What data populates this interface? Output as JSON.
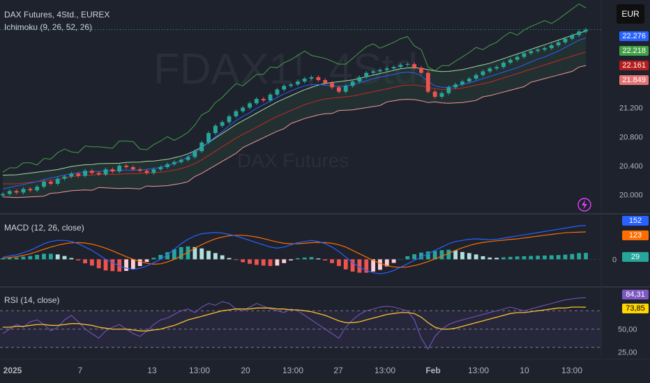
{
  "header": {
    "symbol_title": "DAX Futures, 4Std., EUREX",
    "indicator1": "Ichimoku (9, 26, 52, 26)",
    "currency": "EUR",
    "watermark_symbol": "FDAX1!, 4Std.",
    "watermark_name": "DAX Futures"
  },
  "price_axis": {
    "ticks": [
      "21.200",
      "20.800",
      "20.400",
      "20.000"
    ],
    "tick_values": [
      21200,
      20800,
      20400,
      20000
    ],
    "badges": [
      {
        "text": "22.276",
        "color": "#2962ff"
      },
      {
        "text": "22.218",
        "color": "#43a047"
      },
      {
        "text": "22.161",
        "color": "#b71c1c"
      },
      {
        "text": "21.849",
        "color": "#e57373"
      }
    ]
  },
  "macd": {
    "label": "MACD (12, 26, close)",
    "badges": [
      {
        "text": "152",
        "color": "#2962ff"
      },
      {
        "text": "123",
        "color": "#ff6d00"
      },
      {
        "text": "29",
        "color": "#26a69a"
      }
    ],
    "zero_tick": "0"
  },
  "rsi": {
    "label": "RSI (14, close)",
    "badges": [
      {
        "text": "84,31",
        "color": "#7e57c2"
      },
      {
        "text": "73,85",
        "color": "#ffd600"
      }
    ],
    "ticks": [
      "50,00",
      "25,00"
    ]
  },
  "time_axis": {
    "labels": [
      "2025",
      "7",
      "13",
      "13:00",
      "20",
      "13:00",
      "27",
      "13:00",
      "Feb",
      "13:00",
      "10",
      "13:00"
    ]
  },
  "chart_data": {
    "type": "line",
    "title": "DAX Futures, 4Std., EUREX",
    "currency": "EUR",
    "ylim": [
      19900,
      22300
    ],
    "price_close": [
      20010,
      20050,
      20030,
      20080,
      20060,
      20110,
      20180,
      20150,
      20220,
      20250,
      20290,
      20260,
      20330,
      20300,
      20280,
      20350,
      20320,
      20400,
      20380,
      20350,
      20330,
      20300,
      20350,
      20380,
      20420,
      20450,
      20480,
      20520,
      20600,
      20720,
      20850,
      20950,
      21000,
      21080,
      21150,
      21200,
      21260,
      21320,
      21300,
      21380,
      21450,
      21500,
      21520,
      21560,
      21600,
      21620,
      21580,
      21540,
      21480,
      21420,
      21500,
      21560,
      21620,
      21680,
      21700,
      21720,
      21740,
      21760,
      21790,
      21800,
      21750,
      21680,
      21420,
      21350,
      21400,
      21480,
      21520,
      21560,
      21600,
      21650,
      21700,
      21740,
      21760,
      21820,
      21860,
      21900,
      21950,
      21980,
      22000,
      22020,
      22060,
      22100,
      22150,
      22200,
      22250,
      22276
    ],
    "tenkan": [
      20080,
      20100,
      20120,
      20140,
      20160,
      20180,
      20210,
      20230,
      20250,
      20270,
      20290,
      20300,
      20310,
      20320,
      20320,
      20330,
      20330,
      20340,
      20340,
      20340,
      20340,
      20350,
      20360,
      20380,
      20400,
      20430,
      20470,
      20520,
      20580,
      20650,
      20720,
      20800,
      20870,
      20950,
      21020,
      21080,
      21130,
      21190,
      21240,
      21290,
      21340,
      21390,
      21430,
      21470,
      21500,
      21520,
      21520,
      21510,
      21500,
      21490,
      21500,
      21520,
      21540,
      21570,
      21600,
      21620,
      21640,
      21660,
      21680,
      21690,
      21680,
      21640,
      21560,
      21500,
      21480,
      21480,
      21500,
      21520,
      21540,
      21570,
      21600,
      21630,
      21660,
      21690,
      21720,
      21750,
      21790,
      21830,
      21870,
      21900,
      21940,
      21980,
      22030,
      22080,
      22130,
      22161
    ],
    "kijun": [
      20150,
      20150,
      20150,
      20160,
      20170,
      20180,
      20190,
      20200,
      20210,
      20230,
      20250,
      20260,
      20270,
      20270,
      20280,
      20280,
      20280,
      20280,
      20290,
      20290,
      20290,
      20300,
      20300,
      20310,
      20320,
      20340,
      20360,
      20390,
      20430,
      20480,
      20540,
      20600,
      20660,
      20720,
      20780,
      20830,
      20880,
      20930,
      20980,
      21030,
      21080,
      21120,
      21160,
      21200,
      21240,
      21270,
      21300,
      21320,
      21330,
      21340,
      21350,
      21360,
      21380,
      21400,
      21420,
      21440,
      21460,
      21480,
      21500,
      21510,
      21510,
      21500,
      21480,
      21460,
      21450,
      21450,
      21460,
      21470,
      21490,
      21510,
      21530,
      21550,
      21580,
      21610,
      21640,
      21670,
      21700,
      21730,
      21760,
      21790,
      21820,
      21850,
      21880,
      21910,
      21940,
      21966
    ],
    "macd_line": [
      10,
      15,
      20,
      30,
      40,
      55,
      70,
      80,
      85,
      85,
      80,
      70,
      55,
      40,
      20,
      0,
      -15,
      -30,
      -40,
      -45,
      -40,
      -30,
      -15,
      0,
      20,
      45,
      70,
      90,
      105,
      115,
      118,
      120,
      118,
      112,
      105,
      95,
      85,
      75,
      65,
      55,
      50,
      55,
      65,
      75,
      80,
      85,
      80,
      70,
      55,
      35,
      10,
      -15,
      -35,
      -50,
      -60,
      -65,
      -60,
      -50,
      -35,
      -20,
      -5,
      10,
      25,
      40,
      55,
      70,
      80,
      85,
      90,
      92,
      90,
      88,
      90,
      95,
      100,
      105,
      110,
      115,
      120,
      125,
      130,
      135,
      140,
      145,
      150,
      152
    ],
    "signal_line": [
      5,
      8,
      12,
      18,
      25,
      35,
      45,
      55,
      63,
      70,
      74,
      75,
      73,
      68,
      60,
      50,
      38,
      25,
      12,
      0,
      -10,
      -18,
      -22,
      -20,
      -12,
      0,
      15,
      32,
      50,
      66,
      80,
      92,
      100,
      106,
      108,
      108,
      105,
      100,
      93,
      85,
      78,
      72,
      70,
      70,
      72,
      75,
      76,
      75,
      72,
      65,
      55,
      40,
      25,
      10,
      -5,
      -18,
      -28,
      -34,
      -36,
      -34,
      -28,
      -20,
      -10,
      2,
      14,
      27,
      40,
      52,
      62,
      70,
      76,
      80,
      83,
      86,
      89,
      92,
      96,
      100,
      104,
      108,
      112,
      116,
      119,
      121,
      122,
      123
    ],
    "macd_histogram": [
      5,
      7,
      8,
      12,
      15,
      20,
      25,
      25,
      22,
      15,
      6,
      -5,
      -18,
      -28,
      -40,
      -50,
      -53,
      -55,
      -52,
      -45,
      -30,
      -12,
      7,
      20,
      32,
      45,
      55,
      58,
      55,
      49,
      38,
      28,
      18,
      6,
      -3,
      -13,
      -20,
      -25,
      -28,
      -30,
      -28,
      -17,
      -5,
      5,
      8,
      10,
      4,
      -5,
      -17,
      -30,
      -45,
      -55,
      -60,
      -60,
      -55,
      -47,
      -32,
      -16,
      1,
      14,
      23,
      30,
      35,
      38,
      41,
      43,
      40,
      33,
      28,
      22,
      14,
      8,
      7,
      9,
      11,
      13,
      14,
      15,
      16,
      17,
      18,
      19,
      21,
      24,
      28,
      29
    ],
    "rsi_values": [
      45,
      50,
      55,
      52,
      58,
      60,
      55,
      48,
      52,
      60,
      65,
      58,
      50,
      45,
      40,
      48,
      52,
      55,
      50,
      45,
      42,
      48,
      55,
      60,
      62,
      66,
      70,
      72,
      68,
      74,
      78,
      76,
      80,
      78,
      72,
      70,
      74,
      78,
      75,
      72,
      70,
      68,
      72,
      70,
      65,
      60,
      55,
      50,
      45,
      40,
      52,
      60,
      66,
      70,
      72,
      74,
      75,
      74,
      72,
      70,
      60,
      40,
      28,
      42,
      50,
      55,
      58,
      60,
      62,
      64,
      66,
      68,
      70,
      72,
      74,
      72,
      70,
      72,
      74,
      76,
      78,
      80,
      82,
      83,
      84,
      84.31
    ],
    "rsi_ma": [
      52,
      52,
      53,
      53,
      54,
      55,
      55,
      54,
      54,
      55,
      56,
      56,
      55,
      54,
      52,
      51,
      50,
      50,
      50,
      49,
      48,
      48,
      49,
      50,
      52,
      54,
      57,
      60,
      62,
      64,
      66,
      68,
      70,
      71,
      72,
      72,
      72,
      73,
      73,
      73,
      72,
      72,
      71,
      71,
      70,
      69,
      67,
      65,
      62,
      59,
      57,
      57,
      58,
      60,
      62,
      64,
      66,
      67,
      68,
      68,
      67,
      63,
      57,
      52,
      50,
      50,
      51,
      53,
      55,
      57,
      59,
      61,
      63,
      65,
      67,
      68,
      68,
      69,
      70,
      71,
      72,
      73,
      73,
      74,
      74,
      73.85
    ],
    "rsi_levels": [
      70,
      50,
      30
    ],
    "rsi_ylim": [
      20,
      90
    ],
    "macd_ylim": [
      -80,
      170
    ]
  }
}
